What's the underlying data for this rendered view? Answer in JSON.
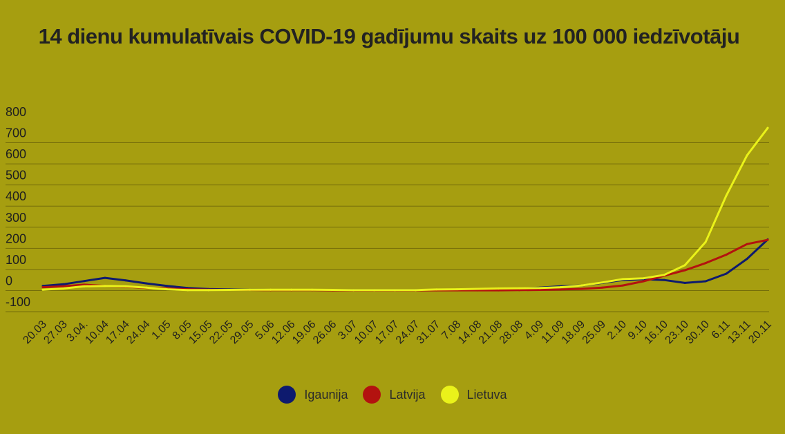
{
  "chart_data": {
    "type": "line",
    "title": "14 dienu kumulatīvais COVID-19 gadījumu skaits uz 100 000 iedzīvotāju",
    "xlabel": "",
    "ylabel": "",
    "ylim": [
      -100,
      800
    ],
    "yticks": [
      "800",
      "700",
      "600",
      "500",
      "400",
      "300",
      "200",
      "100",
      "0",
      "-100"
    ],
    "grid": true,
    "legend_position": "bottom",
    "categories": [
      "20.03",
      "27.03",
      "3.04.",
      "10.04",
      "17.04",
      "24.04",
      "1.05",
      "8.05",
      "15.05",
      "22.05",
      "29.05",
      "5.06",
      "12.06",
      "19.06",
      "26.06",
      "3.07",
      "10.07",
      "17.07",
      "24.07",
      "31.07",
      "7.08",
      "14.08",
      "21.08",
      "28.08",
      "4.09",
      "11.09",
      "18.09",
      "25.09",
      "2.10",
      "9.10",
      "16.10",
      "23.10",
      "30.10",
      "6.11",
      "13.11",
      "20.11"
    ],
    "series": [
      {
        "name": "Igaunija",
        "color": "#0e1a6e",
        "values": [
          22,
          30,
          45,
          60,
          48,
          34,
          22,
          12,
          7,
          5,
          4,
          3,
          3,
          3,
          2,
          2,
          2,
          2,
          2,
          3,
          4,
          6,
          8,
          10,
          14,
          20,
          24,
          36,
          50,
          54,
          50,
          36,
          44,
          80,
          150,
          242
        ]
      },
      {
        "name": "Latvija",
        "color": "#b3120f",
        "values": [
          16,
          20,
          28,
          22,
          18,
          12,
          10,
          6,
          4,
          3,
          3,
          2,
          2,
          2,
          1,
          1,
          1,
          1,
          1,
          1,
          1,
          1,
          1,
          2,
          3,
          5,
          8,
          14,
          24,
          44,
          70,
          96,
          130,
          170,
          220,
          240
        ]
      },
      {
        "name": "Lietuva",
        "color": "#eaf21a",
        "values": [
          4,
          10,
          20,
          22,
          20,
          14,
          6,
          2,
          2,
          3,
          4,
          4,
          4,
          4,
          3,
          2,
          2,
          2,
          2,
          5,
          6,
          8,
          10,
          11,
          12,
          16,
          24,
          38,
          54,
          58,
          74,
          120,
          230,
          450,
          640,
          770
        ]
      }
    ]
  }
}
